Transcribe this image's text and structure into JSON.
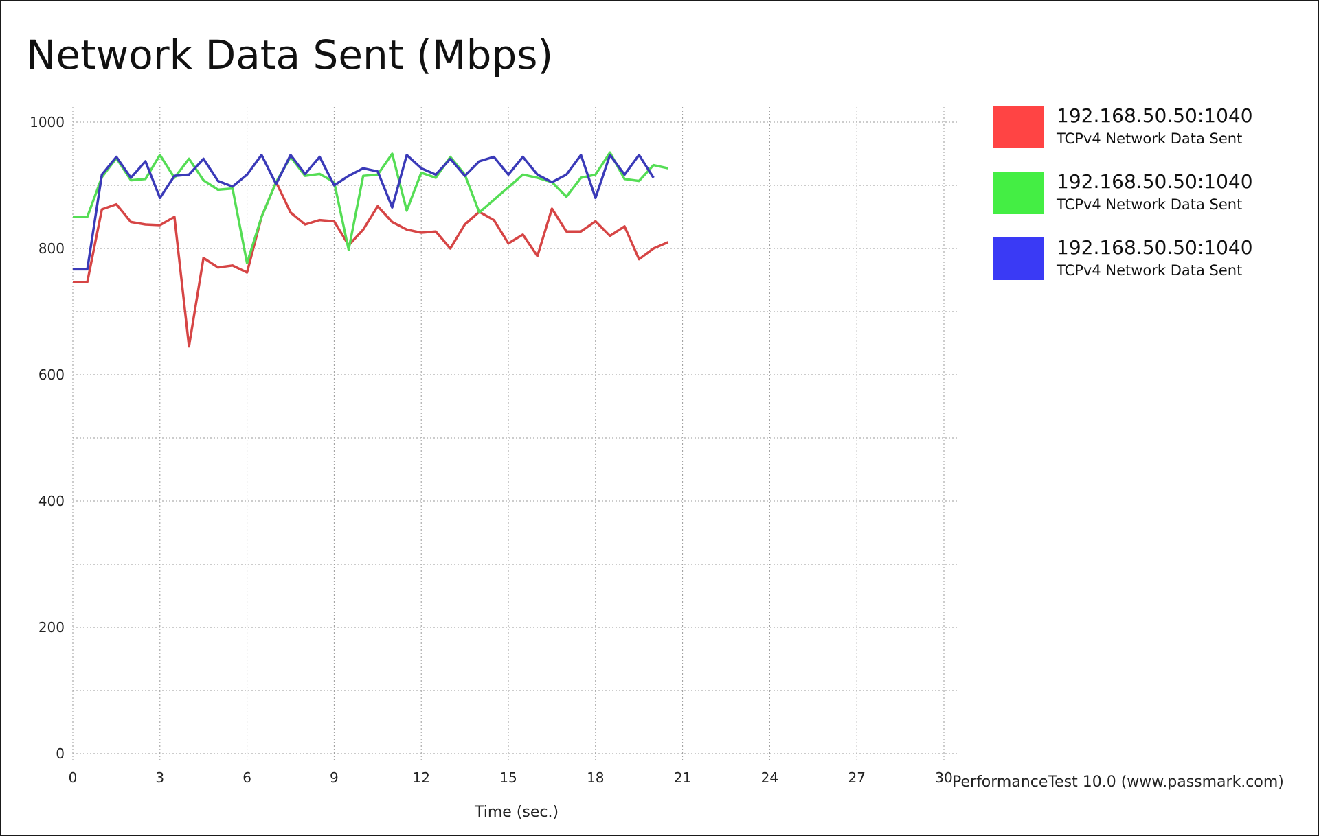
{
  "chart_data": {
    "type": "line",
    "title": "Network Data Sent (Mbps)",
    "xlabel": "Time (sec.)",
    "ylabel": "",
    "xlim": [
      0,
      30
    ],
    "ylim": [
      0,
      1000
    ],
    "xticks": [
      "0",
      "3",
      "6",
      "9",
      "12",
      "15",
      "18",
      "21",
      "24",
      "27",
      "30"
    ],
    "yticks": [
      "0",
      "200",
      "400",
      "600",
      "800",
      "1000"
    ],
    "grid": true,
    "legend_position": "right",
    "credit": "PerformanceTest 10.0 (www.passmark.com)",
    "series": [
      {
        "name": "192.168.50.50:1040",
        "description": "TCPv4 Network Data Sent",
        "color": "#d64545",
        "legend_color": "#ff4444",
        "points": [
          [
            0,
            747
          ],
          [
            0.5,
            747
          ],
          [
            1,
            862
          ],
          [
            1.5,
            870
          ],
          [
            2,
            842
          ],
          [
            2.5,
            838
          ],
          [
            3,
            837
          ],
          [
            3.5,
            850
          ],
          [
            4,
            645
          ],
          [
            4.5,
            785
          ],
          [
            5,
            770
          ],
          [
            5.5,
            773
          ],
          [
            6,
            762
          ],
          [
            6.5,
            850
          ],
          [
            7,
            905
          ],
          [
            7.5,
            857
          ],
          [
            8,
            838
          ],
          [
            8.5,
            845
          ],
          [
            9,
            843
          ],
          [
            9.5,
            805
          ],
          [
            10,
            830
          ],
          [
            10.5,
            867
          ],
          [
            11,
            842
          ],
          [
            11.5,
            830
          ],
          [
            12,
            825
          ],
          [
            12.5,
            827
          ],
          [
            13,
            800
          ],
          [
            13.5,
            838
          ],
          [
            14,
            858
          ],
          [
            14.5,
            845
          ],
          [
            15,
            808
          ],
          [
            15.5,
            822
          ],
          [
            16,
            788
          ],
          [
            16.5,
            863
          ],
          [
            17,
            827
          ],
          [
            17.5,
            827
          ],
          [
            18,
            843
          ],
          [
            18.5,
            820
          ],
          [
            19,
            835
          ],
          [
            19.5,
            783
          ],
          [
            20,
            800
          ],
          [
            20.5,
            810
          ]
        ]
      },
      {
        "name": "192.168.50.50:1040",
        "description": "TCPv4 Network Data Sent",
        "color": "#55dd55",
        "legend_color": "#44ee44",
        "points": [
          [
            0,
            850
          ],
          [
            0.5,
            850
          ],
          [
            1,
            913
          ],
          [
            1.5,
            943
          ],
          [
            2,
            908
          ],
          [
            2.5,
            910
          ],
          [
            3,
            948
          ],
          [
            3.5,
            912
          ],
          [
            4,
            942
          ],
          [
            4.5,
            908
          ],
          [
            5,
            893
          ],
          [
            5.5,
            895
          ],
          [
            6,
            777
          ],
          [
            6.5,
            850
          ],
          [
            7,
            905
          ],
          [
            7.5,
            945
          ],
          [
            8,
            915
          ],
          [
            8.5,
            918
          ],
          [
            9,
            905
          ],
          [
            9.5,
            798
          ],
          [
            10,
            915
          ],
          [
            10.5,
            917
          ],
          [
            11,
            950
          ],
          [
            11.5,
            860
          ],
          [
            12,
            920
          ],
          [
            12.5,
            912
          ],
          [
            13,
            945
          ],
          [
            13.5,
            917
          ],
          [
            14,
            857
          ],
          [
            14.5,
            877
          ],
          [
            15,
            897
          ],
          [
            15.5,
            917
          ],
          [
            16,
            912
          ],
          [
            16.5,
            905
          ],
          [
            17,
            882
          ],
          [
            17.5,
            912
          ],
          [
            18,
            917
          ],
          [
            18.5,
            952
          ],
          [
            19,
            910
          ],
          [
            19.5,
            907
          ],
          [
            20,
            932
          ],
          [
            20.5,
            927
          ]
        ]
      },
      {
        "name": "192.168.50.50:1040",
        "description": "TCPv4 Network Data Sent",
        "color": "#3a3ab8",
        "legend_color": "#3a3af5",
        "points": [
          [
            0,
            767
          ],
          [
            0.5,
            767
          ],
          [
            1,
            917
          ],
          [
            1.5,
            945
          ],
          [
            2,
            912
          ],
          [
            2.5,
            938
          ],
          [
            3,
            880
          ],
          [
            3.5,
            915
          ],
          [
            4,
            917
          ],
          [
            4.5,
            942
          ],
          [
            5,
            907
          ],
          [
            5.5,
            898
          ],
          [
            6,
            917
          ],
          [
            6.5,
            948
          ],
          [
            7,
            902
          ],
          [
            7.5,
            948
          ],
          [
            8,
            918
          ],
          [
            8.5,
            945
          ],
          [
            9,
            900
          ],
          [
            9.5,
            915
          ],
          [
            10,
            927
          ],
          [
            10.5,
            922
          ],
          [
            11,
            865
          ],
          [
            11.5,
            948
          ],
          [
            12,
            927
          ],
          [
            12.5,
            917
          ],
          [
            13,
            942
          ],
          [
            13.5,
            915
          ],
          [
            14,
            938
          ],
          [
            14.5,
            945
          ],
          [
            15,
            917
          ],
          [
            15.5,
            945
          ],
          [
            16,
            917
          ],
          [
            16.5,
            905
          ],
          [
            17,
            917
          ],
          [
            17.5,
            948
          ],
          [
            18,
            880
          ],
          [
            18.5,
            948
          ],
          [
            19,
            917
          ],
          [
            19.5,
            948
          ],
          [
            20,
            912
          ]
        ]
      }
    ]
  }
}
